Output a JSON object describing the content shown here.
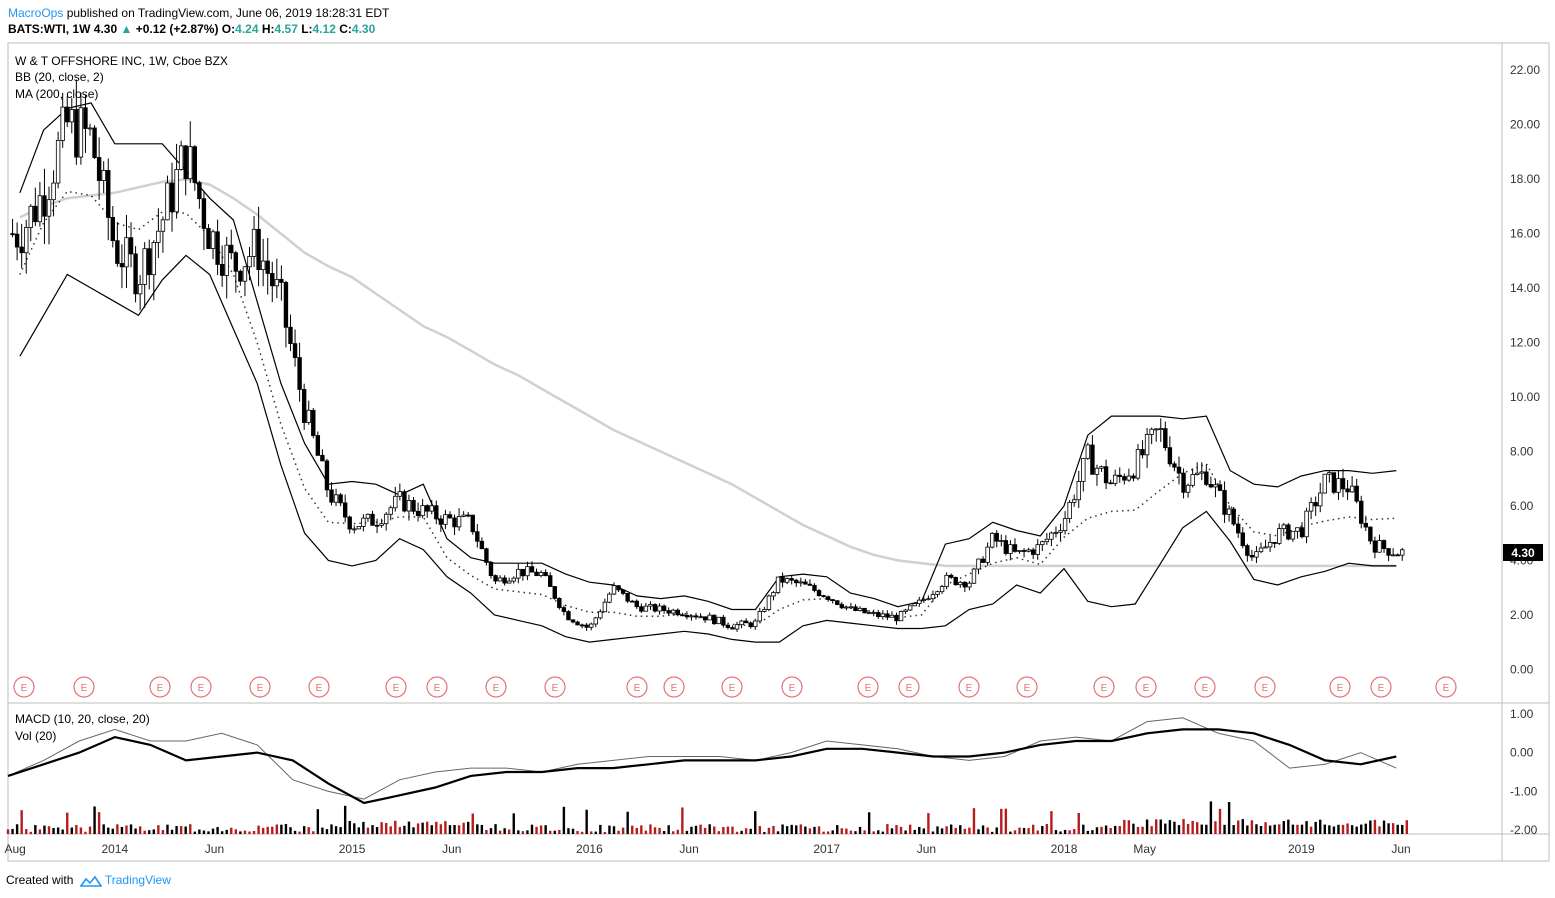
{
  "header": {
    "publisher": "MacroOps",
    "published_text": "published on TradingView.com, June 06, 2019 18:28:31 EDT",
    "symbol_line": "BATS:WTI, 1W",
    "last": "4.30",
    "change": "+0.12 (+2.87%)",
    "o_label": "O:",
    "o": "4.24",
    "h_label": "H:",
    "h": "4.57",
    "l_label": "L:",
    "l": "4.12",
    "c_label": "C:",
    "c": "4.30"
  },
  "footer": {
    "created_with": "Created with",
    "brand": "TradingView"
  },
  "colors": {
    "up": "#26a69a",
    "down_volume": "#b71c1c",
    "band": "#000000",
    "ma200": "#d0d0d0",
    "earnings": "#e57373",
    "price_tag_bg": "#000000"
  },
  "chart_data": {
    "type": "line",
    "title": "W & T OFFSHORE INC, 1W, Cboe BZX",
    "indicators": [
      "BB (20, close, 2)",
      "MA (200, close)"
    ],
    "price_axis": {
      "ticks": [
        "22.00",
        "20.00",
        "18.00",
        "16.00",
        "14.00",
        "12.00",
        "10.00",
        "8.00",
        "6.00",
        "4.00",
        "2.00",
        "0.00"
      ],
      "ylim": [
        -0.5,
        23.0
      ]
    },
    "x_axis_labels": [
      "Aug",
      "2014",
      "Jun",
      "2015",
      "Jun",
      "2016",
      "Jun",
      "2017",
      "Jun",
      "2018",
      "May",
      "2019",
      "Jun"
    ],
    "last_price_tag": "4.30",
    "price": {
      "t": [
        2013.6,
        2013.7,
        2013.8,
        2013.9,
        2014.0,
        2014.1,
        2014.2,
        2014.3,
        2014.4,
        2014.5,
        2014.6,
        2014.7,
        2014.8,
        2014.9,
        2015.0,
        2015.1,
        2015.2,
        2015.3,
        2015.4,
        2015.5,
        2015.6,
        2015.7,
        2015.8,
        2015.9,
        2016.0,
        2016.1,
        2016.2,
        2016.3,
        2016.4,
        2016.5,
        2016.6,
        2016.7,
        2016.8,
        2016.9,
        2017.0,
        2017.1,
        2017.2,
        2017.3,
        2017.4,
        2017.5,
        2017.6,
        2017.7,
        2017.8,
        2017.9,
        2018.0,
        2018.1,
        2018.2,
        2018.3,
        2018.4,
        2018.5,
        2018.6,
        2018.7,
        2018.8,
        2018.9,
        2019.0,
        2019.1,
        2019.2,
        2019.3,
        2019.4
      ],
      "close": [
        16.0,
        17.5,
        20.0,
        19.5,
        15.5,
        14.5,
        16.5,
        19.0,
        16.0,
        14.8,
        15.5,
        13.5,
        9.5,
        6.5,
        5.3,
        5.5,
        6.2,
        5.8,
        5.5,
        5.4,
        3.2,
        3.6,
        3.5,
        2.0,
        1.5,
        3.0,
        2.3,
        2.2,
        2.1,
        1.9,
        1.6,
        1.7,
        3.3,
        3.1,
        2.7,
        2.2,
        2.0,
        1.9,
        2.5,
        3.3,
        3.2,
        4.8,
        4.2,
        4.5,
        5.5,
        7.8,
        6.8,
        7.5,
        8.8,
        6.9,
        7.2,
        5.6,
        4.0,
        5.0,
        5.1,
        6.9,
        6.7,
        4.6,
        4.3
      ]
    },
    "bb_upper": [
      17.5,
      19.8,
      20.6,
      20.8,
      19.3,
      19.3,
      19.3,
      18.3,
      17.3,
      16.5,
      13.5,
      10.5,
      8.3,
      6.8,
      6.9,
      6.8,
      6.4,
      6.8,
      4.8,
      4.1,
      3.9,
      3.9,
      3.9,
      3.5,
      3.2,
      3.1,
      2.7,
      2.6,
      2.7,
      2.5,
      2.2,
      2.2,
      3.4,
      3.5,
      3.4,
      2.8,
      2.6,
      2.3,
      2.5,
      4.6,
      4.8,
      5.4,
      5.1,
      4.9,
      6.0,
      8.6,
      9.3,
      9.3,
      9.3,
      9.2,
      9.3,
      7.3,
      6.8,
      6.7,
      7.1,
      7.3,
      7.3,
      7.2,
      7.3
    ],
    "bb_lower": [
      11.5,
      13.0,
      14.5,
      14.0,
      13.5,
      13.0,
      14.3,
      15.2,
      14.5,
      12.5,
      10.5,
      7.5,
      5.0,
      4.0,
      3.8,
      4.0,
      4.8,
      4.4,
      3.4,
      2.8,
      2.0,
      1.8,
      1.6,
      1.2,
      1.0,
      1.1,
      1.2,
      1.3,
      1.4,
      1.3,
      1.1,
      1.0,
      1.0,
      1.6,
      1.8,
      1.7,
      1.6,
      1.5,
      1.5,
      1.6,
      2.2,
      2.4,
      3.1,
      2.8,
      3.7,
      2.5,
      2.3,
      2.4,
      3.8,
      5.2,
      5.8,
      4.7,
      3.3,
      3.1,
      3.4,
      3.6,
      3.9,
      3.8,
      3.8
    ],
    "ma200": [
      16.6,
      17.0,
      17.3,
      17.4,
      17.5,
      17.7,
      17.9,
      18.0,
      17.8,
      17.3,
      16.7,
      16.0,
      15.3,
      14.8,
      14.4,
      13.8,
      13.2,
      12.6,
      12.2,
      11.7,
      11.2,
      10.8,
      10.3,
      9.8,
      9.3,
      8.8,
      8.4,
      8.0,
      7.6,
      7.2,
      6.8,
      6.3,
      5.8,
      5.3,
      4.9,
      4.5,
      4.2,
      4.0,
      3.9,
      3.8,
      3.8,
      3.8,
      3.8,
      3.8,
      3.8,
      3.8,
      3.8,
      3.8,
      3.8,
      3.8,
      3.8,
      3.8,
      3.8,
      3.8,
      3.8,
      3.8,
      3.8,
      3.8,
      3.8
    ],
    "earnings_markers": [
      "E",
      "E",
      "E",
      "E",
      "E",
      "E",
      "E",
      "E",
      "E",
      "E",
      "E",
      "E",
      "E",
      "E",
      "E",
      "E",
      "E",
      "E",
      "E",
      "E",
      "E",
      "E",
      "E",
      "E",
      "E"
    ],
    "macd_panel": {
      "title": "MACD (10, 20, close, 20)",
      "vol_label": "Vol (20)",
      "ticks": [
        "1.00",
        "0.00",
        "-1.00",
        "-2.00"
      ],
      "ylim": [
        -2.1,
        1.1
      ],
      "t": [
        2013.55,
        2013.7,
        2013.85,
        2014.0,
        2014.15,
        2014.3,
        2014.45,
        2014.6,
        2014.75,
        2014.9,
        2015.05,
        2015.2,
        2015.35,
        2015.5,
        2015.65,
        2015.8,
        2015.95,
        2016.1,
        2016.25,
        2016.4,
        2016.55,
        2016.7,
        2016.85,
        2017.0,
        2017.15,
        2017.3,
        2017.45,
        2017.6,
        2017.75,
        2017.9,
        2018.05,
        2018.2,
        2018.35,
        2018.5,
        2018.65,
        2018.8,
        2018.95,
        2019.1,
        2019.25,
        2019.4
      ],
      "macd": [
        -0.6,
        -0.2,
        0.3,
        0.6,
        0.3,
        0.3,
        0.5,
        0.2,
        -0.7,
        -1.0,
        -1.2,
        -0.7,
        -0.5,
        -0.4,
        -0.4,
        -0.5,
        -0.3,
        -0.2,
        -0.1,
        -0.1,
        -0.1,
        -0.2,
        0.0,
        0.3,
        0.2,
        0.1,
        -0.1,
        -0.2,
        -0.1,
        0.3,
        0.4,
        0.3,
        0.8,
        0.9,
        0.5,
        0.3,
        -0.4,
        -0.3,
        0.0,
        -0.4
      ],
      "signal": [
        -0.6,
        -0.3,
        0.0,
        0.4,
        0.2,
        -0.2,
        -0.1,
        0.0,
        -0.2,
        -0.8,
        -1.3,
        -1.1,
        -0.9,
        -0.6,
        -0.5,
        -0.5,
        -0.4,
        -0.4,
        -0.3,
        -0.2,
        -0.2,
        -0.2,
        -0.1,
        0.1,
        0.1,
        0.0,
        -0.1,
        -0.1,
        0.0,
        0.2,
        0.3,
        0.3,
        0.5,
        0.6,
        0.6,
        0.5,
        0.2,
        -0.2,
        -0.3,
        -0.1
      ]
    }
  }
}
